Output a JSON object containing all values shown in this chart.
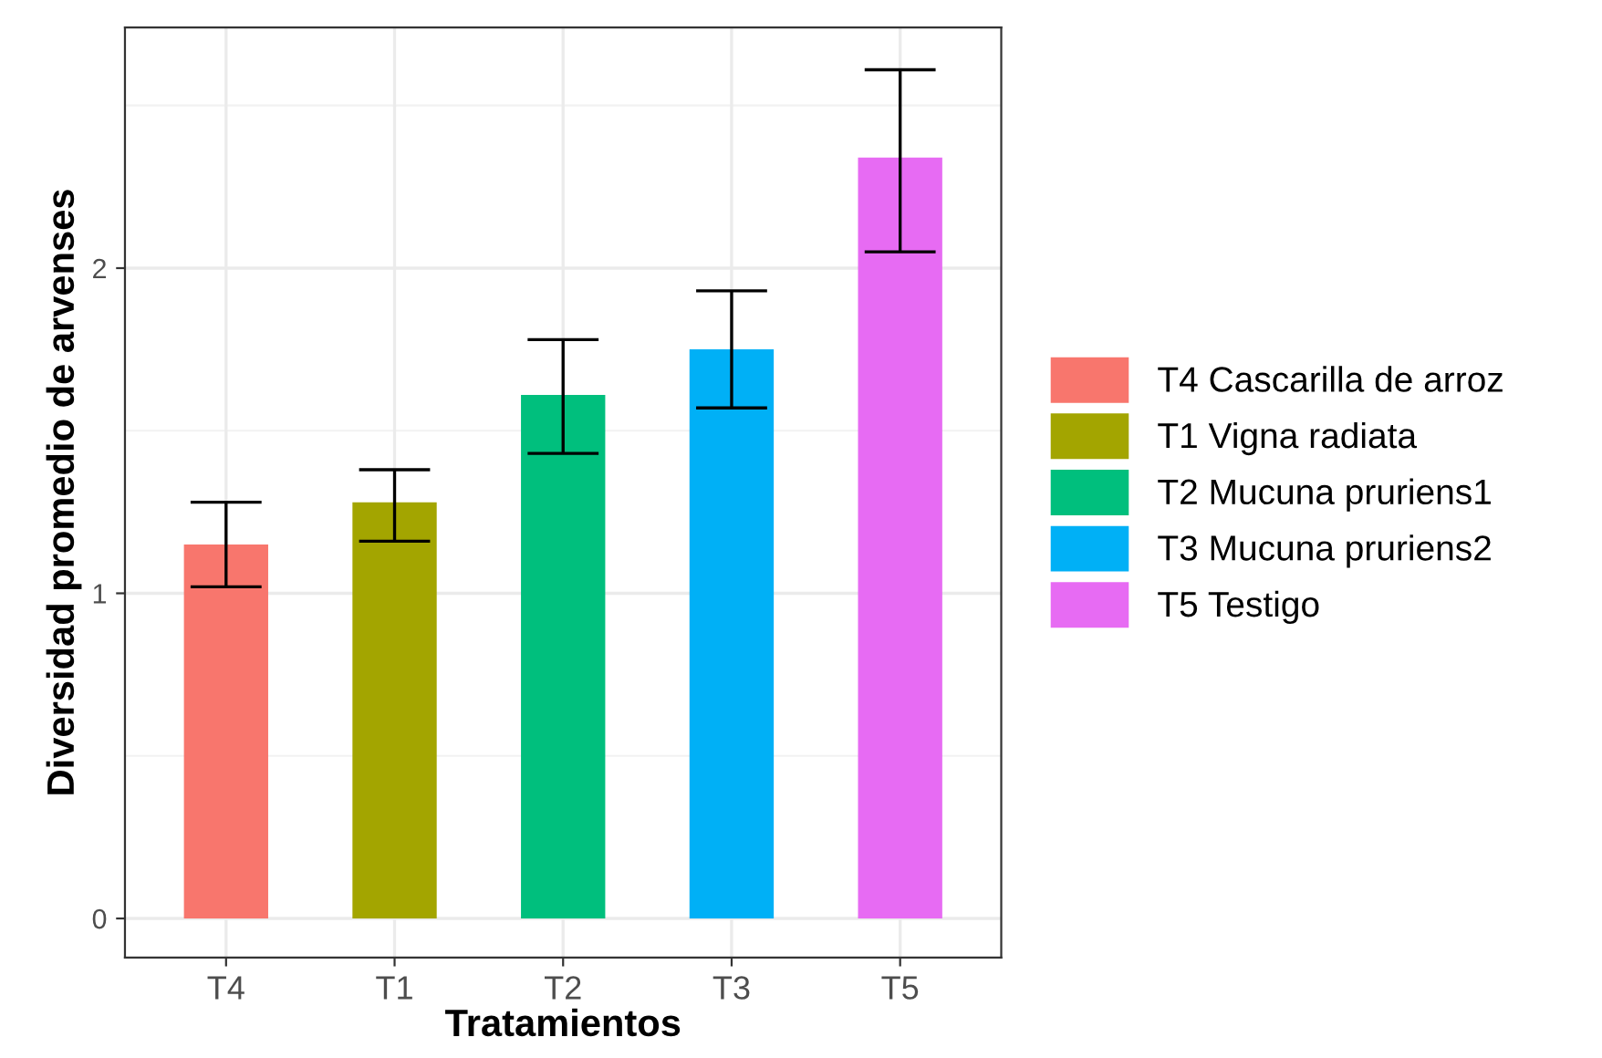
{
  "chart_data": {
    "type": "bar",
    "xlabel": "Tratamientos",
    "ylabel": "Diversidad promedio de arvenses",
    "categories": [
      "T4",
      "T1",
      "T2",
      "T3",
      "T5"
    ],
    "series": [
      {
        "name": "T4 Cascarilla de arroz",
        "color": "#f8766d",
        "values": [
          1.15,
          null,
          null,
          null,
          null
        ],
        "errors": [
          [
            1.02,
            1.28
          ],
          null,
          null,
          null,
          null
        ]
      },
      {
        "name": "T1 Vigna radiata",
        "color": "#a3a500",
        "values": [
          null,
          1.28,
          null,
          null,
          null
        ],
        "errors": [
          null,
          [
            1.16,
            1.38
          ],
          null,
          null,
          null
        ]
      },
      {
        "name": "T2 Mucuna pruriens1",
        "color": "#00bf7d",
        "values": [
          null,
          null,
          1.61,
          null,
          null
        ],
        "errors": [
          null,
          null,
          [
            1.43,
            1.78
          ],
          null,
          null
        ]
      },
      {
        "name": "T3 Mucuna pruriens2",
        "color": "#00b0f6",
        "values": [
          null,
          null,
          null,
          1.75,
          null
        ],
        "errors": [
          null,
          null,
          null,
          [
            1.57,
            1.93
          ],
          null
        ]
      },
      {
        "name": "T5 Testigo",
        "color": "#e76bf3",
        "values": [
          null,
          null,
          null,
          null,
          2.34
        ],
        "errors": [
          null,
          null,
          null,
          null,
          [
            2.05,
            2.61
          ]
        ]
      }
    ],
    "ylim": [
      -0.12,
      2.74
    ],
    "yticks": [
      0,
      1,
      2
    ],
    "grid": true,
    "legend": "right"
  }
}
